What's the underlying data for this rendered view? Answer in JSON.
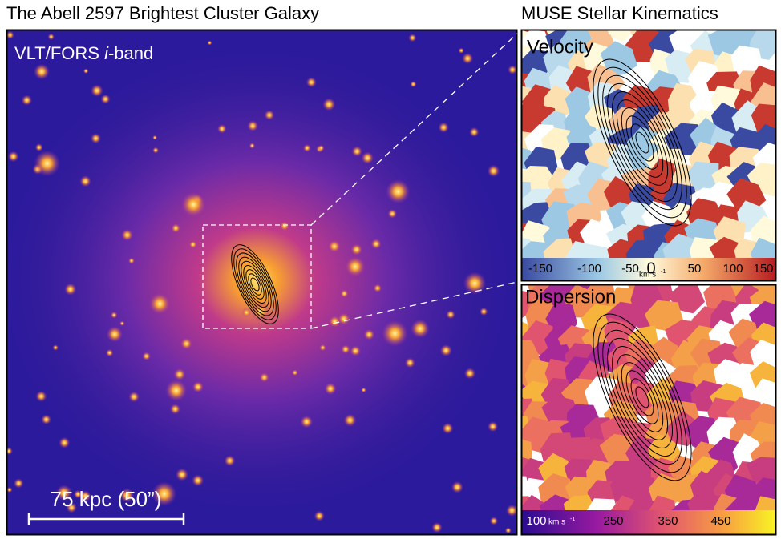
{
  "left_panel": {
    "title": "The Abell 2597 Brightest Cluster Galaxy",
    "label": {
      "prefix": "VLT/FORS ",
      "italic": "i",
      "suffix": "-band"
    },
    "scale_bar": "75 kpc (50”)"
  },
  "right_panel": {
    "title": "MUSE Stellar Kinematics",
    "velocity": {
      "label": "Velocity",
      "ticks": [
        "-150",
        "-100",
        "-50",
        "0",
        "50",
        "100",
        "150"
      ],
      "unit": "km s",
      "unit_exp": "-1"
    },
    "dispersion": {
      "label": "Dispersion",
      "ticks": [
        "100",
        "250",
        "350",
        "450"
      ],
      "unit": "km s",
      "unit_exp": "-1"
    }
  }
}
